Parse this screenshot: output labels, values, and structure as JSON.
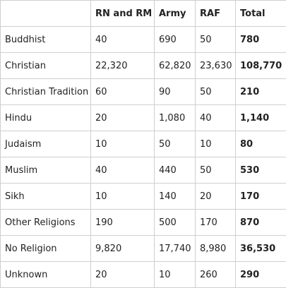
{
  "table": {
    "headers": [
      "",
      "RN and RM",
      "Army",
      "RAF",
      "Total"
    ],
    "rows": [
      {
        "label": "Buddhist",
        "rn_rm": "40",
        "army": "690",
        "raf": "50",
        "total": "780"
      },
      {
        "label": "Christian",
        "rn_rm": "22,320",
        "army": "62,820",
        "raf": "23,630",
        "total": "108,770"
      },
      {
        "label": "Christian Tradition",
        "rn_rm": "60",
        "army": "90",
        "raf": "50",
        "total": "210"
      },
      {
        "label": "Hindu",
        "rn_rm": "20",
        "army": "1,080",
        "raf": "40",
        "total": "1,140"
      },
      {
        "label": "Judaism",
        "rn_rm": "10",
        "army": "50",
        "raf": "10",
        "total": "80"
      },
      {
        "label": "Muslim",
        "rn_rm": "40",
        "army": "440",
        "raf": "50",
        "total": "530"
      },
      {
        "label": "Sikh",
        "rn_rm": "10",
        "army": "140",
        "raf": "20",
        "total": "170"
      },
      {
        "label": "Other Religions",
        "rn_rm": "190",
        "army": "500",
        "raf": "170",
        "total": "870"
      },
      {
        "label": "No Religion",
        "rn_rm": "9,820",
        "army": "17,740",
        "raf": "8,980",
        "total": "36,530"
      },
      {
        "label": "Unknown",
        "rn_rm": "20",
        "army": "10",
        "raf": "260",
        "total": "290"
      }
    ]
  }
}
